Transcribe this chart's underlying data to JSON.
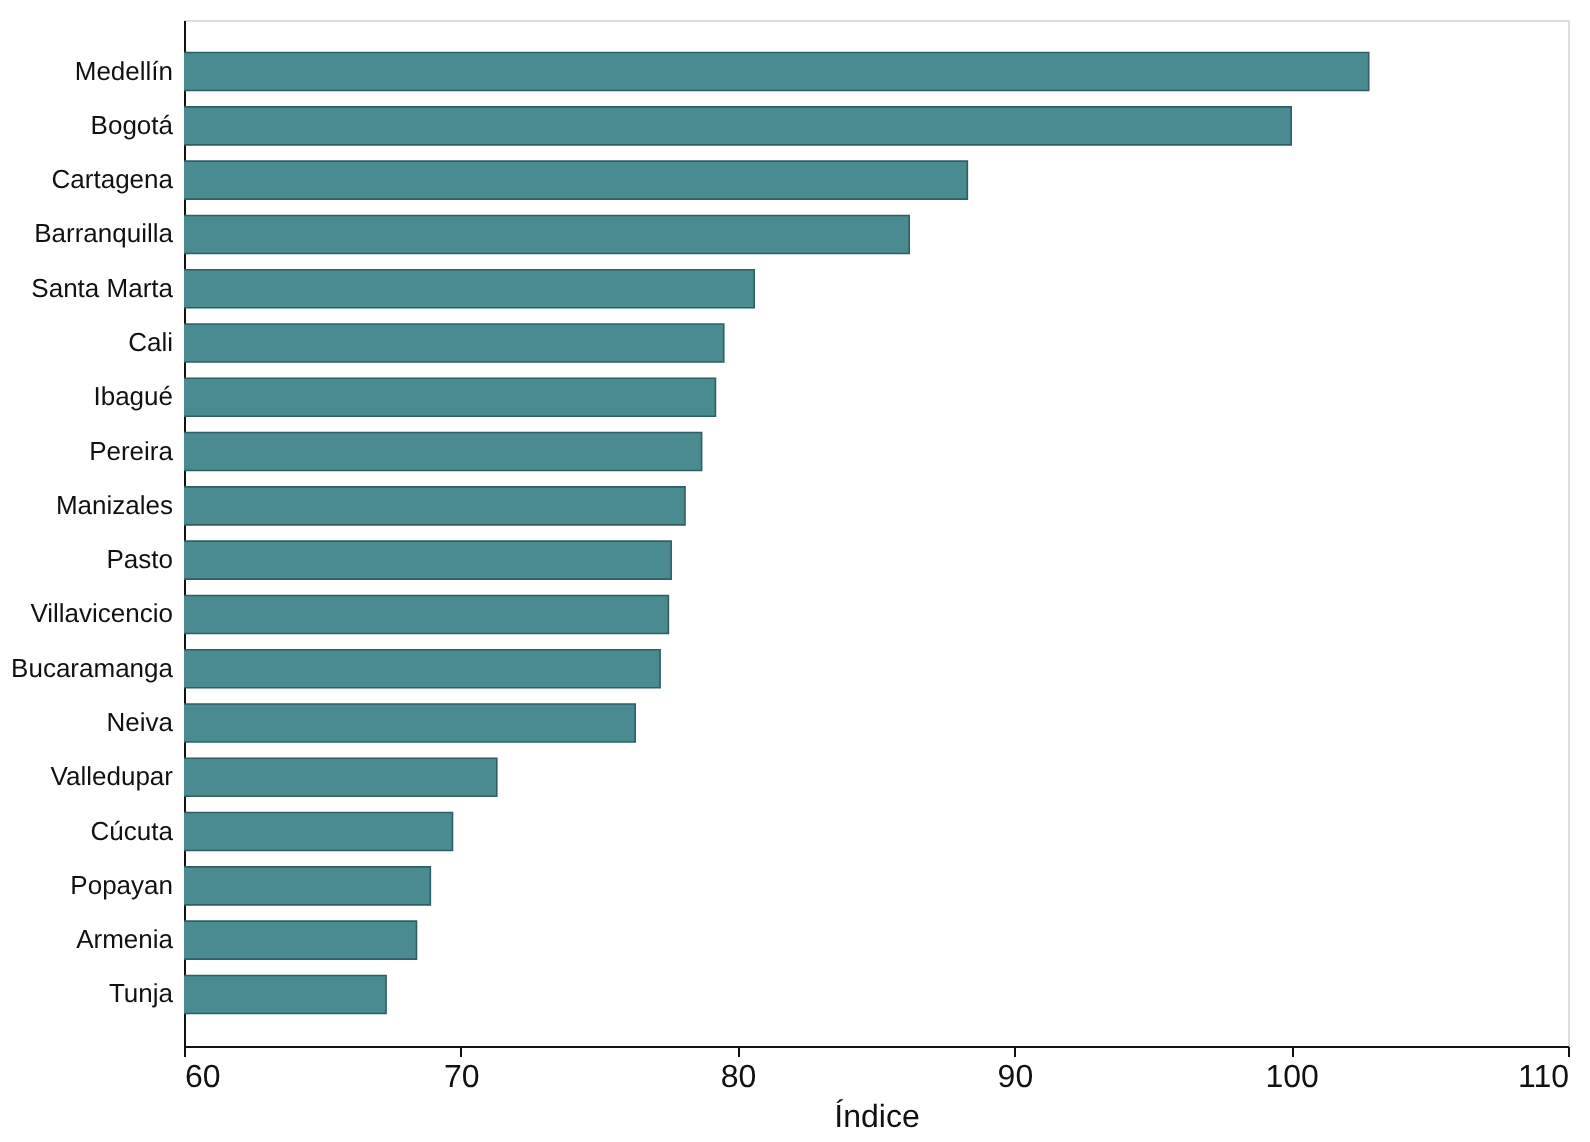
{
  "chart_data": {
    "type": "bar",
    "orientation": "horizontal",
    "xlabel": "Índice",
    "categories": [
      "Medellín",
      "Bogotá",
      "Cartagena",
      "Barranquilla",
      "Santa Marta",
      "Cali",
      "Ibagué",
      "Pereira",
      "Manizales",
      "Pasto",
      "Villavicencio",
      "Bucaramanga",
      "Neiva",
      "Valledupar",
      "Cúcuta",
      "Popayan",
      "Armenia",
      "Tunja"
    ],
    "values": [
      102.8,
      100.0,
      88.3,
      86.2,
      80.6,
      79.5,
      79.2,
      78.7,
      78.1,
      77.6,
      77.5,
      77.2,
      76.3,
      71.3,
      69.7,
      68.9,
      68.4,
      67.3
    ],
    "color": "#4a8a91",
    "xlim": [
      60,
      110
    ],
    "xticks": [
      60,
      70,
      80,
      90,
      100,
      110
    ],
    "grid": false
  }
}
